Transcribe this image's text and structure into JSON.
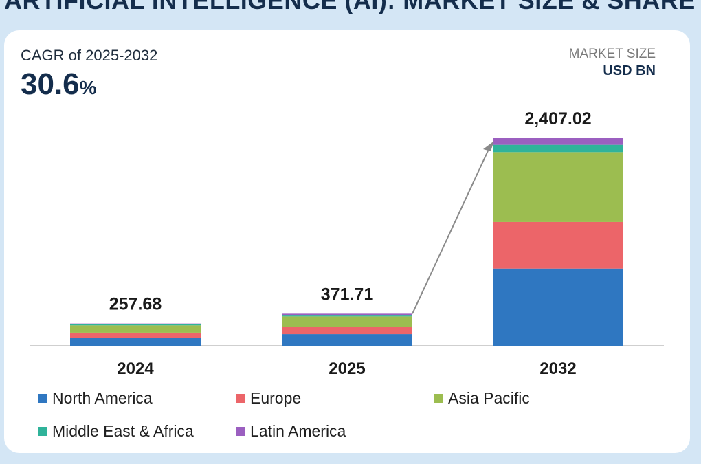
{
  "header": {
    "title": "ARTIFICIAL INTELLIGENCE (AI): MARKET SIZE & SHARE"
  },
  "cagr": {
    "label": "CAGR of 2025-2032",
    "value": "30.6",
    "unit": "%"
  },
  "market_size": {
    "label": "MARKET SIZE",
    "unit": "USD BN"
  },
  "chart_data": {
    "type": "bar",
    "stacked": true,
    "categories": [
      "2024",
      "2025",
      "2032"
    ],
    "totals": [
      257.68,
      371.71,
      2407.02
    ],
    "total_labels": [
      "257.68",
      "371.71",
      "2,407.02"
    ],
    "series": [
      {
        "name": "North America",
        "color": "#2f77c1",
        "values": [
          95,
          135,
          895
        ]
      },
      {
        "name": "Europe",
        "color": "#ec6569",
        "values": [
          57,
          85,
          540
        ]
      },
      {
        "name": "Asia Pacific",
        "color": "#9cbd50",
        "values": [
          85,
          120,
          810
        ]
      },
      {
        "name": "Middle East & Africa",
        "color": "#2fb39a",
        "values": [
          12,
          18,
          85
        ]
      },
      {
        "name": "Latin America",
        "color": "#9b5fc0",
        "values": [
          8.68,
          13.71,
          77.02
        ]
      }
    ],
    "ylim": [
      0,
      2407.02
    ],
    "growth_arrow": {
      "from": "2025",
      "to": "2032"
    },
    "xlabel": "",
    "ylabel": "USD BN",
    "legend": "bottom"
  }
}
